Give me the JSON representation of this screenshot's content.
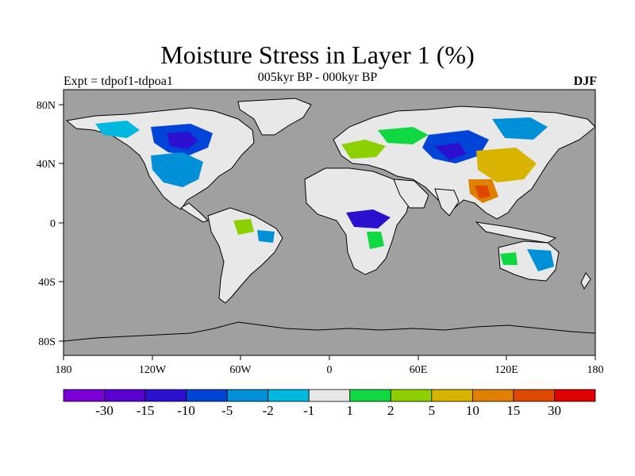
{
  "header": {
    "title": "Moisture Stress in Layer 1 (%)",
    "subtitle": "005kyr BP - 000kyr BP",
    "left_label": "Expt = tdpof1-tdpoa1",
    "right_label": "DJF"
  },
  "map": {
    "background_color": "#a0a0a0",
    "lat_ticks": [
      "80N",
      "40N",
      "0",
      "40S",
      "80S"
    ],
    "lon_ticks": [
      "180",
      "120W",
      "60W",
      "0",
      "60E",
      "120E",
      "180"
    ]
  },
  "colorbar": {
    "colors": [
      "#7c00d8",
      "#5a00d0",
      "#2c10d0",
      "#0045d8",
      "#0090d8",
      "#00b8e0",
      "#e8e8e8",
      "#10d840",
      "#8cd000",
      "#d8b400",
      "#e08000",
      "#e04800",
      "#e00000"
    ],
    "labels": [
      "-30",
      "-15",
      "-10",
      "-5",
      "-2",
      "-1",
      "1",
      "2",
      "5",
      "10",
      "15",
      "30"
    ]
  }
}
